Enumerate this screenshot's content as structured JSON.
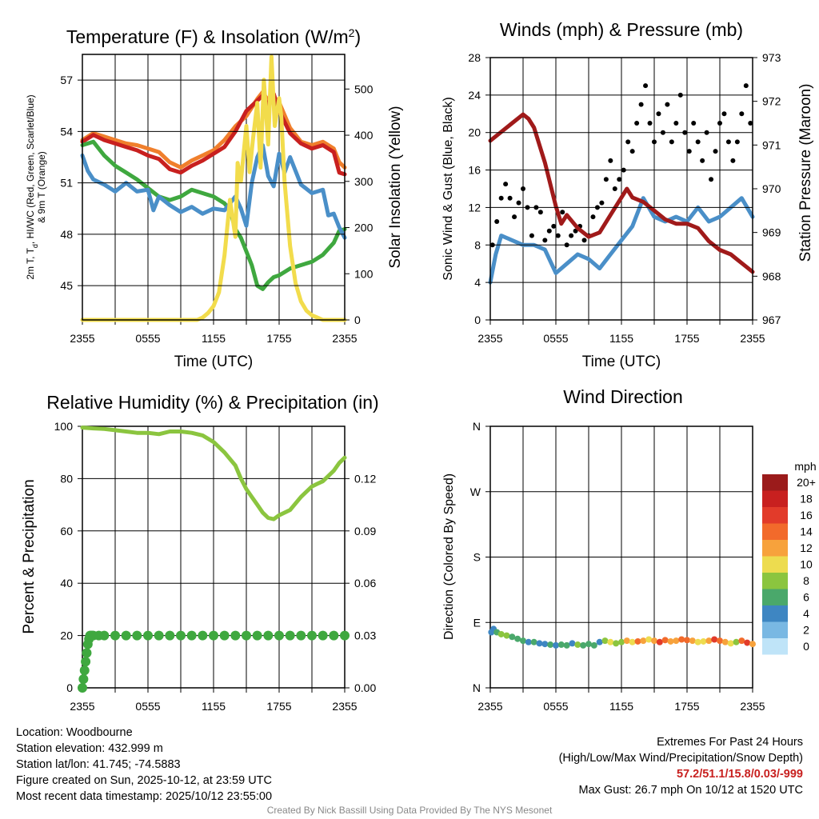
{
  "chart_data": [
    {
      "id": "temp",
      "type": "line",
      "title": "Temperature (F) & Insolation (W/m",
      "title_sup": "2",
      "title_close": ")",
      "xlabel": "Time (UTC)",
      "ylabel_left_line1": "2m T, T",
      "ylabel_left_sub": "d",
      "ylabel_left_line1_rest": ", HI/WC (Red, Green, Scarlet/Blue)",
      "ylabel_left_line2": "& 9m T (Orange)",
      "ylabel_right": "Solar Insolation (Yellow)",
      "x_ticks": [
        "2355",
        "0555",
        "1155",
        "1755",
        "2355"
      ],
      "xlim": [
        0,
        24
      ],
      "ylim": [
        43,
        58.5
      ],
      "y_ticks": [
        "45",
        "48",
        "51",
        "54",
        "57"
      ],
      "y_right_lim": [
        0,
        575
      ],
      "y_right_ticks": [
        "0",
        "100",
        "200",
        "300",
        "400",
        "500"
      ],
      "series": [
        {
          "name": "9m T",
          "color": "#f07f2c",
          "axis": "left",
          "x": [
            0,
            1,
            2,
            3,
            4,
            5,
            6,
            7,
            8,
            9,
            10,
            11,
            12,
            13,
            14,
            15,
            16,
            16.5,
            17,
            17.5,
            18,
            19,
            20,
            21,
            22,
            23,
            23.5,
            24
          ],
          "values": [
            53.5,
            53.9,
            53.7,
            53.5,
            53.3,
            53.2,
            53.0,
            52.8,
            52.2,
            51.9,
            52.3,
            52.6,
            52.9,
            53.5,
            54.3,
            54.9,
            55.9,
            56.3,
            55.8,
            56.0,
            55.7,
            54.2,
            53.4,
            53.2,
            53.4,
            53.0,
            52.2,
            51.9
          ]
        },
        {
          "name": "2m T",
          "color": "#c8201f",
          "axis": "left",
          "x": [
            0,
            1,
            2,
            3,
            4,
            5,
            6,
            7,
            8,
            9,
            10,
            11,
            12,
            13,
            14,
            15,
            16,
            16.5,
            17,
            17.5,
            18,
            19,
            20,
            21,
            22,
            23,
            23.5,
            24
          ],
          "values": [
            53.4,
            53.8,
            53.5,
            53.3,
            53.1,
            52.9,
            52.6,
            52.4,
            51.8,
            51.6,
            52.0,
            52.3,
            52.7,
            53.1,
            54.0,
            55.2,
            55.8,
            56.1,
            55.5,
            56.2,
            55.2,
            53.9,
            53.3,
            53.0,
            53.2,
            52.8,
            51.6,
            51.5
          ]
        },
        {
          "name": "HI/WC",
          "color": "#3fa83f",
          "axis": "left",
          "x": [
            0,
            1,
            2,
            3,
            4,
            5,
            6,
            7,
            8,
            9,
            10,
            11,
            12,
            13,
            13.5,
            14,
            14.5,
            15,
            15.5,
            16,
            16.5,
            17,
            17.5,
            18,
            19,
            20,
            21,
            22,
            23,
            23.5,
            24
          ],
          "values": [
            53.2,
            53.4,
            52.6,
            52.0,
            51.6,
            51.2,
            50.7,
            50.2,
            50.0,
            50.2,
            50.6,
            50.4,
            50.2,
            49.8,
            49.4,
            48.3,
            47.8,
            47.0,
            46.2,
            45.0,
            44.8,
            45.2,
            45.5,
            45.6,
            46.0,
            46.2,
            46.4,
            46.8,
            47.5,
            48.2,
            48.3
          ]
        },
        {
          "name": "Td",
          "color": "#4a8fc8",
          "axis": "left",
          "x": [
            0,
            0.5,
            1,
            2,
            3,
            4,
            5,
            6,
            6.5,
            7,
            8,
            9,
            10,
            11,
            12,
            13,
            14,
            14.5,
            15,
            15.5,
            16,
            16.5,
            17,
            17.5,
            18,
            18.5,
            19,
            20,
            21,
            22,
            22.5,
            23,
            23.5,
            24
          ],
          "values": [
            52.6,
            51.7,
            51.2,
            50.9,
            50.5,
            51.0,
            50.5,
            50.6,
            49.4,
            50.2,
            49.7,
            49.3,
            49.6,
            49.2,
            49.5,
            49.4,
            50.2,
            49.5,
            48.5,
            51.0,
            52.5,
            53.2,
            51.4,
            50.8,
            52.7,
            51.6,
            52.5,
            50.9,
            50.4,
            50.6,
            49.1,
            49.2,
            48.4,
            47.8
          ]
        },
        {
          "name": "Solar Insolation",
          "color": "#f2dc4c",
          "axis": "right",
          "x": [
            0,
            10.5,
            11,
            11.5,
            12,
            12.5,
            13,
            13.5,
            14,
            14.2,
            14.5,
            15,
            15.3,
            15.6,
            16,
            16.3,
            16.6,
            17,
            17.3,
            17.6,
            18,
            18.2,
            18.5,
            19,
            19.5,
            20,
            20.5,
            21,
            21.5,
            22,
            24
          ],
          "values": [
            0,
            0,
            5,
            15,
            30,
            60,
            140,
            260,
            180,
            340,
            300,
            420,
            320,
            390,
            470,
            330,
            520,
            380,
            570,
            420,
            480,
            440,
            300,
            160,
            80,
            40,
            20,
            10,
            5,
            0,
            0
          ]
        }
      ]
    },
    {
      "id": "winds",
      "type": "line",
      "title": "Winds (mph) & Pressure (mb)",
      "xlabel": "Time (UTC)",
      "ylabel_left": "Sonic Wind & Gust (Blue, Black)",
      "ylabel_right": "Station Pressure (Maroon)",
      "x_ticks": [
        "2355",
        "0555",
        "1155",
        "1755",
        "2355"
      ],
      "xlim": [
        0,
        24
      ],
      "ylim": [
        0,
        28
      ],
      "y_ticks": [
        "0",
        "4",
        "8",
        "12",
        "16",
        "20",
        "24",
        "28"
      ],
      "y_right_lim": [
        967,
        973
      ],
      "y_right_ticks": [
        "967",
        "968",
        "969",
        "970",
        "971",
        "972",
        "973"
      ],
      "series": [
        {
          "name": "Sonic Wind",
          "color": "#4a8fc8",
          "axis": "left",
          "x": [
            0,
            0.5,
            1,
            2,
            3,
            4,
            5,
            6,
            6.5,
            7,
            8,
            9,
            10,
            11,
            12,
            13,
            14,
            15,
            16,
            17,
            18,
            19,
            20,
            21,
            22,
            23,
            24
          ],
          "values": [
            4,
            7,
            9,
            8.5,
            8,
            8,
            7.5,
            5,
            5.5,
            6,
            7,
            6.5,
            5.5,
            7,
            8.5,
            10,
            13,
            11,
            10.5,
            11,
            10.5,
            12,
            10.5,
            11,
            12,
            13,
            11
          ]
        },
        {
          "name": "Gust",
          "color": "#000000",
          "axis": "left",
          "style": "dots",
          "x": [
            0.2,
            0.6,
            1.0,
            1.4,
            1.8,
            2.2,
            2.6,
            3.0,
            3.4,
            3.8,
            4.2,
            4.6,
            5.0,
            5.4,
            5.8,
            6.2,
            6.6,
            7.0,
            7.4,
            7.8,
            8.2,
            8.6,
            9.0,
            9.4,
            9.8,
            10.2,
            10.6,
            11.0,
            11.4,
            11.8,
            12.2,
            12.6,
            13.0,
            13.4,
            13.8,
            14.2,
            14.6,
            15.0,
            15.4,
            15.8,
            16.2,
            16.6,
            17.0,
            17.4,
            17.8,
            18.2,
            18.6,
            19.0,
            19.4,
            19.8,
            20.2,
            20.6,
            21.0,
            21.4,
            21.8,
            22.2,
            22.6,
            23.0,
            23.4,
            23.8
          ],
          "values": [
            8,
            10.5,
            13,
            14.5,
            13,
            11,
            12.5,
            14,
            12,
            9,
            12,
            11.5,
            8.5,
            9.5,
            10,
            9,
            11.5,
            8,
            9,
            9.5,
            10,
            8.5,
            9,
            11,
            12,
            12.5,
            15,
            17,
            14,
            15,
            16,
            19,
            18,
            21,
            23,
            25,
            21,
            19,
            22,
            20,
            23,
            19,
            21,
            24,
            20,
            18,
            21,
            19,
            17,
            20,
            15,
            18,
            21,
            22,
            19,
            17,
            19,
            22,
            25,
            21
          ]
        },
        {
          "name": "Station Pressure",
          "color": "#a01a1a",
          "axis": "right",
          "x": [
            0,
            1,
            2,
            3,
            3.5,
            4,
            5,
            6,
            6.5,
            7,
            8,
            9,
            10,
            11,
            12,
            12.5,
            13,
            14,
            15,
            16,
            17,
            18,
            19,
            20,
            21,
            22,
            22.5,
            23,
            23.5,
            24
          ],
          "values": [
            971.1,
            971.3,
            971.5,
            971.7,
            971.6,
            971.4,
            970.6,
            969.6,
            969.2,
            969.4,
            969.1,
            968.9,
            969.0,
            969.4,
            969.8,
            970.0,
            969.8,
            969.7,
            969.5,
            969.3,
            969.2,
            969.2,
            969.1,
            968.8,
            968.6,
            968.5,
            968.4,
            968.3,
            968.2,
            968.1
          ]
        }
      ]
    },
    {
      "id": "rh",
      "type": "line",
      "title": "Relative Humidity (%) & Precipitation (in)",
      "ylabel_left": "Percent & Precipitation",
      "x_ticks": [
        "2355",
        "0555",
        "1155",
        "1755",
        "2355"
      ],
      "xlim": [
        0,
        24
      ],
      "ylim": [
        0,
        100
      ],
      "y_ticks": [
        "0",
        "20",
        "40",
        "60",
        "80",
        "100"
      ],
      "y_right_lim": [
        0,
        0.15
      ],
      "y_right_ticks": [
        "0.00",
        "0.03",
        "0.06",
        "0.09",
        "0.12"
      ],
      "series": [
        {
          "name": "Relative Humidity",
          "color": "#8bc53f",
          "axis": "left",
          "x": [
            0,
            1,
            2,
            3,
            4,
            5,
            6,
            7,
            8,
            9,
            10,
            11,
            12,
            13,
            14,
            14.5,
            15,
            15.5,
            16,
            16.5,
            17,
            17.5,
            18,
            19,
            20,
            21,
            21.5,
            22,
            23,
            23.5,
            24
          ],
          "values": [
            99.5,
            99.2,
            99,
            98.5,
            98,
            97.5,
            97.5,
            97,
            98,
            98,
            97.5,
            96.5,
            94,
            90,
            85,
            80,
            76,
            73,
            70,
            67,
            65,
            64.5,
            66,
            68,
            73,
            77,
            78,
            79,
            83,
            86,
            88
          ]
        },
        {
          "name": "Precipitation",
          "color": "#3fa83f",
          "axis": "right",
          "style": "dots",
          "x": [
            0,
            0.1,
            0.2,
            0.3,
            0.4,
            0.5,
            0.6,
            0.7,
            0.8,
            0.9,
            1,
            1.5,
            2,
            3,
            4,
            5,
            6,
            7,
            8,
            9,
            10,
            11,
            12,
            13,
            14,
            15,
            16,
            17,
            18,
            19,
            20,
            21,
            22,
            23,
            24
          ],
          "values": [
            0.0,
            0.005,
            0.01,
            0.015,
            0.02,
            0.025,
            0.028,
            0.03,
            0.03,
            0.03,
            0.03,
            0.03,
            0.03,
            0.03,
            0.03,
            0.03,
            0.03,
            0.03,
            0.03,
            0.03,
            0.03,
            0.03,
            0.03,
            0.03,
            0.03,
            0.03,
            0.03,
            0.03,
            0.03,
            0.03,
            0.03,
            0.03,
            0.03,
            0.03,
            0.03
          ]
        }
      ]
    },
    {
      "id": "direction",
      "type": "scatter",
      "title": "Wind Direction",
      "ylabel_left": "Direction (Colored By Speed)",
      "x_ticks": [
        "2355",
        "0555",
        "1155",
        "1755",
        "2355"
      ],
      "xlim": [
        0,
        24
      ],
      "ylim": [
        0,
        4
      ],
      "y_ticks": [
        "N",
        "E",
        "S",
        "W",
        "N"
      ],
      "colorbar_title": "mph",
      "colorbar_labels": [
        "20+",
        "18",
        "16",
        "14",
        "12",
        "10",
        "8",
        "6",
        "4",
        "2",
        "0"
      ],
      "colorbar_colors": [
        "#9b1b1b",
        "#c8201f",
        "#e23b2a",
        "#f26a2b",
        "#f7a23c",
        "#eddc4f",
        "#8bc53f",
        "#4aa86b",
        "#3e86c2",
        "#79b8e3",
        "#bfe4f8"
      ],
      "series": [
        {
          "name": "Direction",
          "style": "dots",
          "x": [
            0.1,
            0.3,
            0.6,
            1,
            1.5,
            2,
            2.5,
            3,
            3.5,
            4,
            4.5,
            5,
            5.5,
            6,
            6.5,
            7,
            7.5,
            8,
            8.5,
            9,
            9.5,
            10,
            10.5,
            11,
            11.5,
            12,
            12.5,
            13,
            13.5,
            14,
            14.5,
            15,
            15.5,
            16,
            16.5,
            17,
            17.5,
            18,
            18.5,
            19,
            19.5,
            20,
            20.5,
            21,
            21.5,
            22,
            22.5,
            23,
            23.5,
            24
          ],
          "values": [
            0.85,
            0.9,
            0.85,
            0.82,
            0.8,
            0.78,
            0.75,
            0.72,
            0.7,
            0.7,
            0.68,
            0.67,
            0.66,
            0.65,
            0.66,
            0.65,
            0.68,
            0.66,
            0.65,
            0.67,
            0.65,
            0.7,
            0.72,
            0.7,
            0.68,
            0.7,
            0.72,
            0.7,
            0.71,
            0.72,
            0.74,
            0.72,
            0.7,
            0.73,
            0.71,
            0.72,
            0.74,
            0.73,
            0.72,
            0.7,
            0.71,
            0.72,
            0.74,
            0.72,
            0.7,
            0.68,
            0.7,
            0.72,
            0.69,
            0.67
          ],
          "speeds": [
            5,
            4,
            7,
            8,
            8,
            7,
            6,
            6,
            5,
            6,
            5,
            5,
            6,
            5,
            7,
            6,
            5,
            8,
            7,
            6,
            6,
            4,
            8,
            10,
            9,
            8,
            12,
            10,
            14,
            12,
            10,
            12,
            16,
            14,
            12,
            13,
            15,
            14,
            12,
            10,
            11,
            13,
            16,
            14,
            12,
            10,
            8,
            14,
            16,
            12
          ]
        }
      ]
    }
  ],
  "info": {
    "location": "Location: Woodbourne",
    "elevation": "Station elevation: 432.999 m",
    "latlon": "Station lat/lon: 41.745; -74.5883",
    "created": "Figure created on Sun, 2025-10-12, at 23:59 UTC",
    "recent": "Most recent data timestamp: 2025/10/12 23:55:00"
  },
  "extremes": {
    "title": "Extremes For Past 24 Hours",
    "subtitle": "(High/Low/Max Wind/Precipitation/Snow Depth)",
    "values": "57.2/51.1/15.8/0.03/-999",
    "gust": "Max Gust: 26.7 mph On 10/12 at 1520 UTC"
  },
  "credit": "Created By Nick Bassill Using Data Provided By The NYS Mesonet"
}
